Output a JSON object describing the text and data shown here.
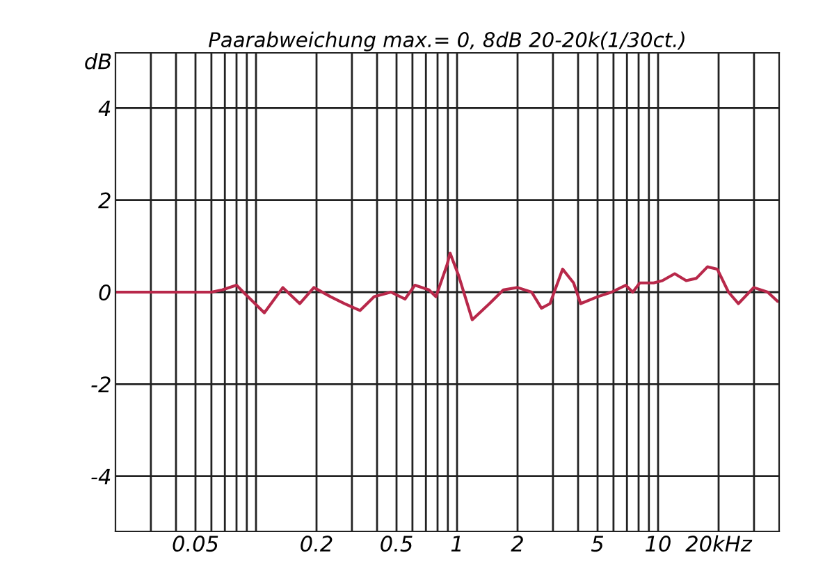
{
  "chart_data": {
    "type": "line",
    "title": "Paarabweichung max.= 0, 8dB 20-20k(1/30ct.)",
    "ylabel": "dB",
    "log": "x",
    "grid": true,
    "marker": "none",
    "line_style": "solid",
    "xlim": [
      0.02,
      40
    ],
    "ylim": [
      -5.2,
      5.2
    ],
    "xticks": [
      {
        "value": 0.03,
        "label": null
      },
      {
        "value": 0.04,
        "label": null
      },
      0.05,
      {
        "value": 0.06,
        "label": null
      },
      {
        "value": 0.07,
        "label": null
      },
      {
        "value": 0.08,
        "label": null
      },
      {
        "value": 0.09,
        "label": null
      },
      {
        "value": 0.1,
        "label": null
      },
      0.2,
      {
        "value": 0.3,
        "label": null
      },
      {
        "value": 0.4,
        "label": null
      },
      0.5,
      {
        "value": 0.6,
        "label": null
      },
      {
        "value": 0.7,
        "label": null
      },
      {
        "value": 0.8,
        "label": null
      },
      {
        "value": 0.9,
        "label": null
      },
      1,
      2,
      {
        "value": 3,
        "label": null
      },
      {
        "value": 4,
        "label": null
      },
      5,
      {
        "value": 6,
        "label": null
      },
      {
        "value": 7,
        "label": null
      },
      {
        "value": 8,
        "label": null
      },
      {
        "value": 9,
        "label": null
      },
      10,
      {
        "value": 20,
        "label": "20kHz"
      },
      {
        "value": 30,
        "label": null
      }
    ],
    "yticks": [
      -4,
      -2,
      0,
      2,
      4
    ],
    "series": [
      {
        "color": "#b8284a",
        "x": [
          0.02,
          0.06,
          0.068,
          0.08,
          0.0865,
          0.11,
          0.136,
          0.165,
          0.194,
          0.235,
          0.276,
          0.329,
          0.387,
          0.469,
          0.551,
          0.617,
          0.725,
          0.785,
          0.893,
          0.923,
          1.02,
          1.19,
          1.45,
          1.7,
          2.0,
          2.35,
          2.63,
          2.9,
          3.35,
          3.8,
          4.12,
          5.0,
          5.87,
          6.9,
          7.48,
          8.11,
          9.5,
          10.5,
          12.1,
          13.8,
          15.5,
          17.6,
          19.7,
          22.4,
          25.1,
          29.9,
          35.1,
          39.3,
          40
        ],
        "values": [
          0,
          0,
          0.05,
          0.15,
          0,
          -0.45,
          0.1,
          -0.25,
          0.1,
          -0.1,
          -0.25,
          -0.4,
          -0.1,
          0,
          -0.15,
          0.15,
          0.05,
          -0.1,
          0.6,
          0.85,
          0.35,
          -0.6,
          -0.25,
          0.05,
          0.1,
          0,
          -0.35,
          -0.25,
          0.5,
          0.2,
          -0.25,
          -0.1,
          0,
          0.15,
          0,
          0.2,
          0.2,
          0.25,
          0.4,
          0.25,
          0.3,
          0.55,
          0.5,
          0,
          -0.25,
          0.1,
          0,
          -0.2,
          -0.2
        ]
      }
    ]
  }
}
